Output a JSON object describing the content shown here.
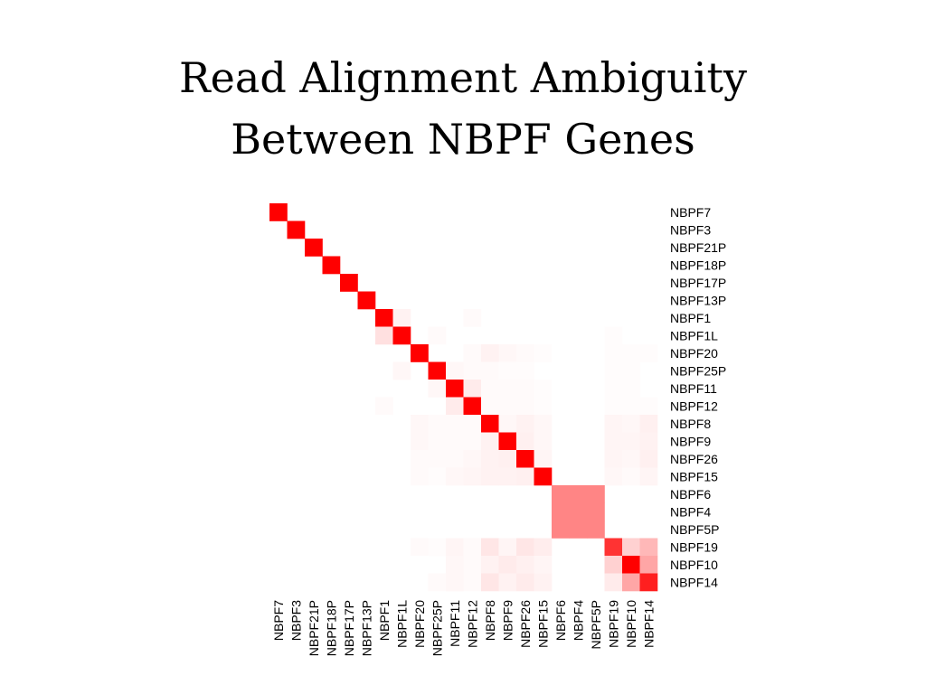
{
  "chart_data": {
    "type": "heatmap",
    "title_lines": [
      "Read Alignment Ambiguity",
      "Between NBPF Genes"
    ],
    "xlabel": "",
    "ylabel": "",
    "color_scale": {
      "min_color": "#ffffff",
      "max_color": "#ff0000",
      "range": [
        0,
        1
      ]
    },
    "genes": [
      "NBPF7",
      "NBPF3",
      "NBPF21P",
      "NBPF18P",
      "NBPF17P",
      "NBPF13P",
      "NBPF1",
      "NBPF1L",
      "NBPF20",
      "NBPF25P",
      "NBPF11",
      "NBPF12",
      "NBPF8",
      "NBPF9",
      "NBPF26",
      "NBPF15",
      "NBPF6",
      "NBPF4",
      "NBPF5P",
      "NBPF19",
      "NBPF10",
      "NBPF14"
    ],
    "matrix": [
      [
        1,
        0,
        0,
        0,
        0,
        0,
        0,
        0,
        0,
        0,
        0,
        0,
        0,
        0,
        0,
        0,
        0,
        0,
        0,
        0,
        0,
        0
      ],
      [
        0,
        1,
        0,
        0,
        0,
        0,
        0,
        0,
        0,
        0,
        0,
        0,
        0,
        0,
        0,
        0,
        0,
        0,
        0,
        0,
        0,
        0
      ],
      [
        0,
        0,
        1,
        0,
        0,
        0,
        0,
        0,
        0,
        0,
        0,
        0,
        0,
        0,
        0,
        0,
        0,
        0,
        0,
        0,
        0,
        0
      ],
      [
        0,
        0,
        0,
        1,
        0,
        0,
        0,
        0,
        0,
        0,
        0,
        0,
        0,
        0,
        0,
        0,
        0,
        0,
        0,
        0,
        0,
        0
      ],
      [
        0,
        0,
        0,
        0,
        1,
        0,
        0,
        0,
        0,
        0,
        0,
        0,
        0,
        0,
        0,
        0,
        0,
        0,
        0,
        0,
        0,
        0
      ],
      [
        0,
        0,
        0,
        0,
        0,
        1,
        0,
        0,
        0,
        0,
        0,
        0,
        0,
        0,
        0,
        0,
        0,
        0,
        0,
        0,
        0,
        0
      ],
      [
        0,
        0,
        0,
        0,
        0,
        0,
        1,
        0.05,
        0,
        0,
        0,
        0.02,
        0,
        0,
        0,
        0,
        0,
        0,
        0,
        0,
        0,
        0
      ],
      [
        0,
        0,
        0,
        0,
        0,
        0,
        0.12,
        1,
        0,
        0.02,
        0,
        0,
        0,
        0,
        0,
        0,
        0,
        0,
        0,
        0.01,
        0,
        0
      ],
      [
        0,
        0,
        0,
        0,
        0,
        0,
        0,
        0,
        1,
        0,
        0,
        0.02,
        0.05,
        0.03,
        0.02,
        0.01,
        0,
        0,
        0,
        0.01,
        0.01,
        0.01
      ],
      [
        0,
        0,
        0,
        0,
        0,
        0,
        0,
        0.03,
        0,
        1,
        0.03,
        0.02,
        0.02,
        0.01,
        0.01,
        0,
        0,
        0,
        0,
        0.01,
        0.01,
        0
      ],
      [
        0,
        0,
        0,
        0,
        0,
        0,
        0,
        0,
        0,
        0.03,
        1,
        0.08,
        0.02,
        0.02,
        0.02,
        0.01,
        0,
        0,
        0,
        0.01,
        0.01,
        0
      ],
      [
        0,
        0,
        0,
        0,
        0,
        0,
        0.02,
        0,
        0,
        0,
        0.08,
        1,
        0.02,
        0.02,
        0.02,
        0.01,
        0,
        0,
        0,
        0.01,
        0.01,
        0.01
      ],
      [
        0,
        0,
        0,
        0,
        0,
        0,
        0,
        0,
        0.03,
        0.02,
        0.02,
        0.02,
        1,
        0.03,
        0.05,
        0.03,
        0,
        0,
        0,
        0.04,
        0.03,
        0.06
      ],
      [
        0,
        0,
        0,
        0,
        0,
        0,
        0,
        0,
        0.03,
        0.02,
        0.02,
        0.02,
        0.05,
        1,
        0.06,
        0.03,
        0,
        0,
        0,
        0.04,
        0.04,
        0.05
      ],
      [
        0,
        0,
        0,
        0,
        0,
        0,
        0,
        0,
        0.02,
        0.02,
        0.02,
        0.03,
        0.05,
        0.06,
        1,
        0.04,
        0,
        0,
        0,
        0.04,
        0.03,
        0.06
      ],
      [
        0,
        0,
        0,
        0,
        0,
        0,
        0,
        0,
        0.02,
        0.01,
        0.03,
        0.04,
        0.05,
        0.05,
        0.06,
        1,
        0,
        0,
        0,
        0.03,
        0.02,
        0.04
      ],
      [
        0,
        0,
        0,
        0,
        0,
        0,
        0,
        0,
        0,
        0,
        0,
        0,
        0,
        0,
        0,
        0,
        0.48,
        0.48,
        0.48,
        0,
        0,
        0
      ],
      [
        0,
        0,
        0,
        0,
        0,
        0,
        0,
        0,
        0,
        0,
        0,
        0,
        0,
        0,
        0,
        0,
        0.48,
        0.48,
        0.48,
        0,
        0,
        0
      ],
      [
        0,
        0,
        0,
        0,
        0,
        0,
        0,
        0,
        0,
        0,
        0,
        0,
        0,
        0,
        0,
        0,
        0.48,
        0.48,
        0.48,
        0,
        0,
        0
      ],
      [
        0,
        0,
        0,
        0,
        0,
        0,
        0,
        0,
        0.02,
        0.01,
        0.04,
        0.02,
        0.1,
        0.04,
        0.1,
        0.07,
        0,
        0,
        0,
        0.8,
        0.18,
        0.28
      ],
      [
        0,
        0,
        0,
        0,
        0,
        0,
        0,
        0,
        0,
        0,
        0.03,
        0.02,
        0.05,
        0.08,
        0.06,
        0.04,
        0,
        0,
        0,
        0.18,
        1,
        0.35
      ],
      [
        0,
        0,
        0,
        0,
        0,
        0,
        0,
        0,
        0,
        0.02,
        0.03,
        0.02,
        0.1,
        0.05,
        0.08,
        0.05,
        0,
        0,
        0,
        0.08,
        0.35,
        0.88
      ]
    ]
  }
}
